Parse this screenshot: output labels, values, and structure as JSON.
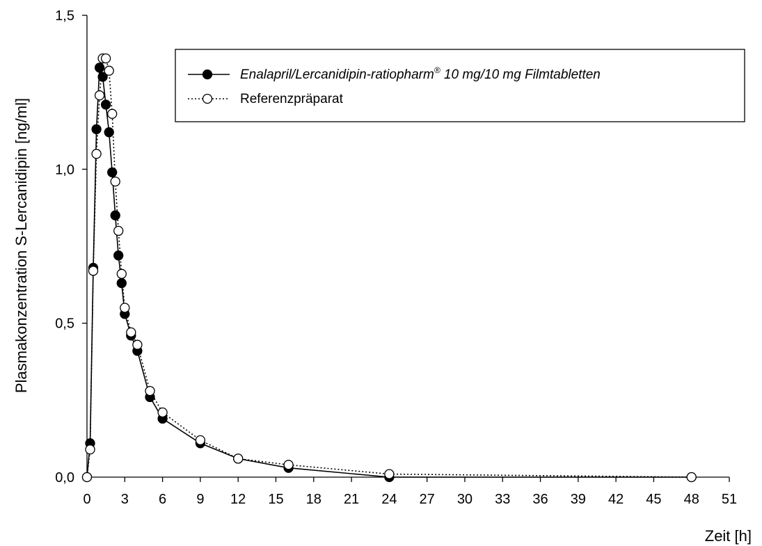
{
  "chart_data": {
    "type": "line",
    "title": "",
    "xlabel": "Zeit [h]",
    "ylabel": "Plasmakonzentration S-Lercanidipin [ng/ml]",
    "xlim": [
      0,
      51
    ],
    "ylim": [
      0,
      1.5
    ],
    "x_ticks": [
      "0",
      "3",
      "6",
      "9",
      "12",
      "15",
      "18",
      "21",
      "24",
      "27",
      "30",
      "33",
      "36",
      "39",
      "42",
      "45",
      "48",
      "51"
    ],
    "y_ticks": [
      "0,0",
      "0,5",
      "1,0",
      "1,5"
    ],
    "grid": false,
    "legend_position": "top-right",
    "legend": {
      "series1_main": "Enalapril/Lercanidipin-ratiopharm",
      "series1_sup": "®",
      "series1_rest": " 10 mg/10 mg Filmtabletten",
      "series2": "Referenzpräparat"
    },
    "series": [
      {
        "name": "Enalapril/Lercanidipin-ratiopharm® 10 mg/10 mg Filmtabletten",
        "marker": "filled-circle",
        "line": "solid",
        "color": "#000000",
        "x": [
          0,
          0.25,
          0.5,
          0.75,
          1,
          1.25,
          1.5,
          1.75,
          2,
          2.25,
          2.5,
          2.75,
          3,
          3.5,
          4,
          5,
          6,
          9,
          12,
          16,
          24,
          48
        ],
        "y": [
          0.0,
          0.11,
          0.68,
          1.13,
          1.33,
          1.3,
          1.21,
          1.12,
          0.99,
          0.85,
          0.72,
          0.63,
          0.53,
          0.46,
          0.41,
          0.26,
          0.19,
          0.11,
          0.06,
          0.03,
          0.0,
          0.0
        ]
      },
      {
        "name": "Referenzpräparat",
        "marker": "open-circle",
        "line": "dotted",
        "color": "#000000",
        "x": [
          0,
          0.25,
          0.5,
          0.75,
          1,
          1.25,
          1.5,
          1.75,
          2,
          2.25,
          2.5,
          2.75,
          3,
          3.5,
          4,
          5,
          6,
          9,
          12,
          16,
          24,
          48
        ],
        "y": [
          0.0,
          0.09,
          0.67,
          1.05,
          1.24,
          1.36,
          1.36,
          1.32,
          1.18,
          0.96,
          0.8,
          0.66,
          0.55,
          0.47,
          0.43,
          0.28,
          0.21,
          0.12,
          0.06,
          0.04,
          0.01,
          0.0
        ]
      }
    ]
  }
}
